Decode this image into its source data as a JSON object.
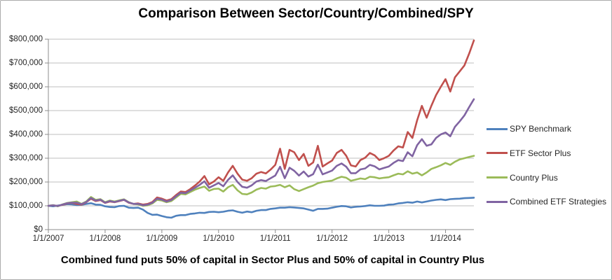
{
  "chart_data": {
    "type": "line",
    "title": "Comparison Between Sector/Country/Combined/SPY",
    "caption": "Combined fund puts 50% of capital in Sector Plus and 50% of capital in Country Plus",
    "grid": true,
    "legend_position": "right",
    "x": {
      "start": "1/1/2007",
      "interval": "monthly",
      "total_months": 90,
      "tick_month_indexes": [
        0,
        12,
        24,
        36,
        48,
        60,
        72,
        84
      ],
      "tick_labels": [
        "1/1/2007",
        "1/1/2008",
        "1/1/2009",
        "1/1/2010",
        "1/1/2011",
        "1/1/2012",
        "1/1/2013",
        "1/1/2014"
      ]
    },
    "y": {
      "min": 0,
      "max": 800000,
      "tick_values": [
        0,
        100000,
        200000,
        300000,
        400000,
        500000,
        600000,
        700000,
        800000
      ],
      "tick_labels": [
        "$0",
        "$100,000",
        "$200,000",
        "$300,000",
        "$400,000",
        "$500,000",
        "$600,000",
        "$700,000",
        "$800,000"
      ]
    },
    "series": [
      {
        "name": "SPY Benchmark",
        "color": "#4F81BD",
        "values": [
          100000,
          98000,
          101000,
          104000,
          107000,
          106000,
          103000,
          104000,
          108000,
          111000,
          105000,
          104000,
          98000,
          95000,
          94000,
          99000,
          100000,
          92000,
          91000,
          92000,
          84000,
          70000,
          62000,
          63000,
          57000,
          52000,
          50000,
          58000,
          61000,
          61000,
          66000,
          68000,
          71000,
          70000,
          74000,
          75000,
          73000,
          75000,
          79000,
          81000,
          75000,
          71000,
          76000,
          73000,
          79000,
          82000,
          82000,
          87000,
          89000,
          92000,
          92000,
          94000,
          93000,
          91000,
          89000,
          84000,
          79000,
          87000,
          87000,
          88000,
          92000,
          96000,
          99000,
          98000,
          93000,
          96000,
          97000,
          99000,
          102000,
          100000,
          100000,
          101000,
          105000,
          106000,
          110000,
          112000,
          115000,
          113000,
          118000,
          114000,
          118000,
          122000,
          125000,
          127000,
          124000,
          128000,
          129000,
          130000,
          132000,
          133000,
          134000
        ]
      },
      {
        "name": "ETF Sector Plus",
        "color": "#C0504D",
        "values": [
          100000,
          102000,
          99000,
          104000,
          110000,
          112000,
          108000,
          105000,
          115000,
          130000,
          120000,
          124000,
          112000,
          118000,
          115000,
          120000,
          125000,
          113000,
          108000,
          110000,
          105000,
          108000,
          116000,
          135000,
          130000,
          122000,
          128000,
          145000,
          160000,
          158000,
          170000,
          185000,
          202000,
          225000,
          190000,
          202000,
          220000,
          205000,
          240000,
          268000,
          235000,
          210000,
          205000,
          216000,
          235000,
          242000,
          236000,
          252000,
          272000,
          340000,
          255000,
          335000,
          325000,
          292000,
          318000,
          268000,
          282000,
          352000,
          265000,
          278000,
          290000,
          322000,
          335000,
          310000,
          270000,
          265000,
          292000,
          302000,
          322000,
          312000,
          292000,
          300000,
          310000,
          332000,
          350000,
          345000,
          410000,
          385000,
          460000,
          520000,
          470000,
          520000,
          565000,
          600000,
          632000,
          580000,
          640000,
          665000,
          690000,
          740000,
          795000
        ]
      },
      {
        "name": "Country Plus",
        "color": "#9BBB59",
        "values": [
          100000,
          103000,
          98000,
          106000,
          112000,
          115000,
          118000,
          108000,
          118000,
          137000,
          125000,
          128000,
          115000,
          122000,
          118000,
          123000,
          127000,
          115000,
          108000,
          106000,
          100000,
          102000,
          110000,
          125000,
          122000,
          115000,
          120000,
          135000,
          150000,
          148000,
          158000,
          168000,
          175000,
          181000,
          163000,
          171000,
          172000,
          160000,
          178000,
          188000,
          165000,
          150000,
          148000,
          156000,
          168000,
          175000,
          172000,
          181000,
          183000,
          188000,
          178000,
          186000,
          170000,
          162000,
          170000,
          178000,
          185000,
          195000,
          200000,
          203000,
          206000,
          215000,
          222000,
          218000,
          205000,
          210000,
          215000,
          212000,
          222000,
          220000,
          215000,
          218000,
          220000,
          228000,
          235000,
          232000,
          245000,
          235000,
          240000,
          228000,
          240000,
          255000,
          262000,
          270000,
          280000,
          272000,
          285000,
          295000,
          300000,
          305000,
          310000
        ]
      },
      {
        "name": "Combined ETF Strategies",
        "color": "#8064A2",
        "values": [
          100000,
          102000,
          99000,
          105000,
          111000,
          113000,
          113000,
          107000,
          116000,
          133000,
          122000,
          126000,
          113000,
          120000,
          116000,
          121000,
          126000,
          114000,
          108000,
          108000,
          102000,
          105000,
          113000,
          130000,
          126000,
          118000,
          124000,
          140000,
          155000,
          153000,
          164000,
          176000,
          188000,
          203000,
          176000,
          186000,
          196000,
          182000,
          209000,
          228000,
          200000,
          180000,
          176000,
          186000,
          202000,
          208000,
          204000,
          216000,
          227000,
          264000,
          216000,
          260000,
          247000,
          227000,
          244000,
          223000,
          233000,
          273000,
          232000,
          240000,
          248000,
          268000,
          278000,
          264000,
          237000,
          237000,
          253000,
          257000,
          272000,
          266000,
          253000,
          259000,
          265000,
          280000,
          292000,
          288000,
          325000,
          308000,
          355000,
          380000,
          352000,
          358000,
          385000,
          400000,
          408000,
          392000,
          432000,
          455000,
          480000,
          515000,
          548000
        ]
      }
    ],
    "style": {
      "gridline_color": "#BFBFBF",
      "axis_color": "#8C8C8C",
      "tick_label_color": "#262626",
      "series_stroke_width": 2.6
    }
  }
}
